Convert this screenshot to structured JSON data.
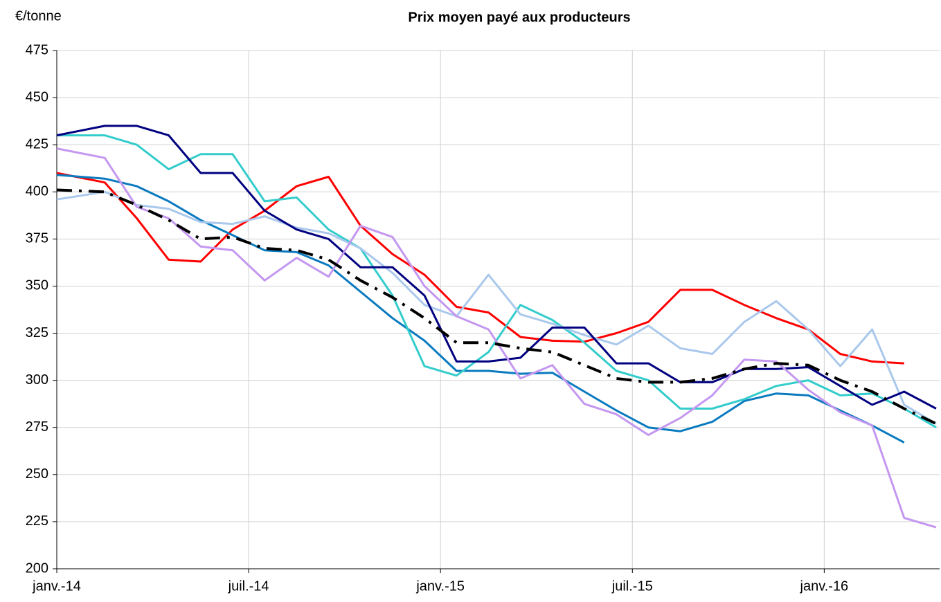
{
  "chart_data": {
    "type": "line",
    "title": "Prix moyen payé aux producteurs",
    "y_label": "€/tonne",
    "x": [
      0,
      1.5,
      2.5,
      3.5,
      4.5,
      5.5,
      6.5,
      7.5,
      8.5,
      9.5,
      10.5,
      11.5,
      12.5,
      13.5,
      14.5,
      15.5,
      16.5,
      17.5,
      18.5,
      19.5,
      20.5,
      21.5,
      22.5,
      23.5,
      24.5,
      25.5,
      26.5,
      27.5
    ],
    "xlim": [
      0,
      27.5
    ],
    "xticks": [
      {
        "value": 0,
        "label": "janv.-14"
      },
      {
        "value": 6,
        "label": "juil.-14"
      },
      {
        "value": 12,
        "label": "janv.-15"
      },
      {
        "value": 18,
        "label": "juil.-15"
      },
      {
        "value": 24,
        "label": "janv.-16"
      }
    ],
    "ylim": [
      200,
      475
    ],
    "yticks": [
      200,
      225,
      250,
      275,
      300,
      325,
      350,
      375,
      400,
      425,
      450,
      475
    ],
    "grid": true,
    "series": [
      {
        "color": "#ff0000",
        "values": [
          410,
          405,
          386,
          364,
          363,
          380,
          390,
          403,
          408,
          382,
          367,
          356,
          339,
          336,
          323,
          321,
          320.5,
          325,
          331,
          348,
          348,
          340,
          333,
          327,
          314,
          310,
          309,
          null
        ]
      },
      {
        "color": "#0a7abf",
        "values": [
          409,
          407,
          403,
          395,
          385,
          377,
          369,
          368,
          361,
          347,
          333,
          321,
          305,
          305,
          303.5,
          304,
          294,
          284,
          275,
          273,
          278,
          289,
          293,
          292,
          284,
          276,
          267,
          null
        ]
      },
      {
        "color": "#33cccc",
        "values": [
          430,
          430,
          425,
          412,
          420,
          420,
          395,
          397,
          380,
          370,
          345,
          307.5,
          302.5,
          315,
          340,
          332,
          320,
          305,
          300,
          285,
          285,
          290,
          297,
          300,
          292,
          293,
          285,
          275
        ]
      },
      {
        "color": "#a9c8ec",
        "values": [
          396,
          400,
          393,
          391,
          384,
          383,
          387,
          381,
          378,
          370,
          357,
          340,
          334,
          356,
          335,
          330,
          324,
          319,
          329,
          317,
          314,
          331,
          342,
          327,
          307.5,
          327,
          287,
          277
        ]
      },
      {
        "color": "#000080",
        "values": [
          430,
          435,
          435,
          430,
          410,
          410,
          390,
          380,
          375,
          360,
          360,
          345,
          310,
          310,
          312,
          328,
          328,
          309,
          309,
          299,
          299,
          306,
          306,
          307,
          297,
          287,
          294,
          285
        ]
      },
      {
        "color": "#c497f0",
        "values": [
          423,
          418,
          392,
          386,
          371,
          369,
          353,
          365,
          355,
          382,
          376,
          350,
          334,
          327,
          301,
          308,
          287.5,
          282,
          271,
          280,
          292,
          311,
          310,
          295,
          283,
          276,
          227,
          222
        ]
      },
      {
        "color": "#000000",
        "linestyle": "dashdot",
        "values": [
          401,
          400,
          393,
          385,
          375,
          376,
          370,
          369,
          364,
          353,
          344,
          333,
          320,
          320,
          317,
          315,
          308,
          301,
          299,
          299,
          301,
          306,
          309,
          308,
          300,
          294,
          285,
          277
        ]
      }
    ]
  }
}
